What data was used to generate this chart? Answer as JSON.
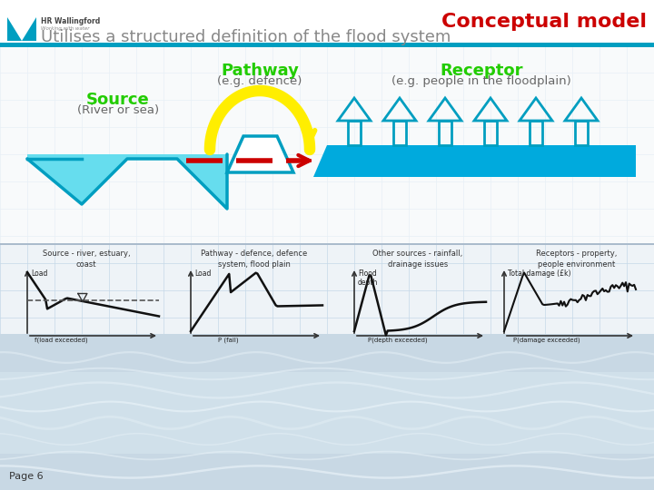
{
  "title": "Conceptual model",
  "subtitle": "Utilises a structured definition of the flood system",
  "page_label": "Page 6",
  "bg_color": "#eef3f7",
  "grid_color": "#c5d8e8",
  "header_bg": "#ffffff",
  "title_color": "#cc0000",
  "subtitle_color": "#888888",
  "source_label": "Source",
  "source_sub": "(River or sea)",
  "pathway_label": "Pathway",
  "pathway_sub": "(e.g. defence)",
  "receptor_label": "Receptor",
  "receptor_sub": "(e.g. people in the floodplain)",
  "label_color": "#22cc00",
  "water_blue": "#009ec0",
  "water_light": "#66ddee",
  "flood_blue": "#00aadd",
  "arrow_yellow": "#ffee00",
  "arrow_red": "#cc0000",
  "bottom_water_color": "#c0d4e0",
  "mini_section_labels": [
    "Source - river, estuary,\ncoast",
    "Pathway - defence, defence\nsystem, flood plain",
    "Other sources - rainfall,\ndrainage issues",
    "Receptors - property,\npeople environment"
  ],
  "mini_y_labels": [
    "Load",
    "Load",
    "Flood\ndepth",
    "Total damage (£k)"
  ],
  "mini_x_labels": [
    "f(load exceeded)",
    "P (fail)",
    "P(depth exceeded)",
    "P(damage exceeded)"
  ]
}
